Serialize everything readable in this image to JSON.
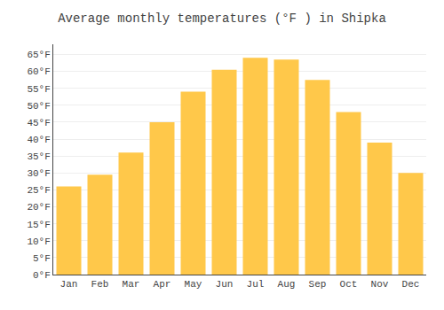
{
  "chart_data": {
    "type": "bar",
    "title": "Average monthly temperatures (°F ) in Shipka",
    "categories": [
      "Jan",
      "Feb",
      "Mar",
      "Apr",
      "May",
      "Jun",
      "Jul",
      "Aug",
      "Sep",
      "Oct",
      "Nov",
      "Dec"
    ],
    "values": [
      26,
      29.5,
      36,
      45,
      54,
      60.5,
      64,
      63.5,
      57.5,
      48,
      39,
      30
    ],
    "color": "#FFC84A",
    "ylim": [
      0,
      68
    ],
    "yticks": [
      {
        "value": 0,
        "label": "0°F"
      },
      {
        "value": 5,
        "label": "5°F"
      },
      {
        "value": 10,
        "label": "10°F"
      },
      {
        "value": 15,
        "label": "15°F"
      },
      {
        "value": 20,
        "label": "20°F"
      },
      {
        "value": 25,
        "label": "25°F"
      },
      {
        "value": 30,
        "label": "30°F"
      },
      {
        "value": 35,
        "label": "35°F"
      },
      {
        "value": 40,
        "label": "40°F"
      },
      {
        "value": 45,
        "label": "45°F"
      },
      {
        "value": 50,
        "label": "50°F"
      },
      {
        "value": 55,
        "label": "55°F"
      },
      {
        "value": 60,
        "label": "60°F"
      },
      {
        "value": 65,
        "label": "65°F"
      }
    ],
    "grid": true
  }
}
